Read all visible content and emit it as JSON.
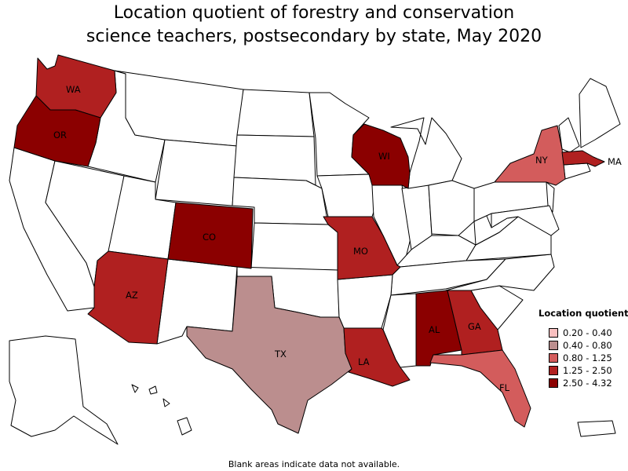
{
  "title_line1": "Location quotient of forestry and conservation",
  "title_line2": "science teachers, postsecondary by state, May 2020",
  "legend": {
    "title": "Location quotient",
    "items": [
      {
        "label": "0.20 - 0.40",
        "color": "#f9c0c0"
      },
      {
        "label": "0.40 - 0.80",
        "color": "#bb8e8e"
      },
      {
        "label": "0.80 - 1.25",
        "color": "#d35c5c"
      },
      {
        "label": "1.25 - 2.50",
        "color": "#b02020"
      },
      {
        "label": "2.50 - 4.32",
        "color": "#8b0000"
      }
    ]
  },
  "colors": {
    "no_data": "#ffffff",
    "border": "#000000"
  },
  "states": [
    {
      "abbr": "WA",
      "label": "WA",
      "bin": 3
    },
    {
      "abbr": "OR",
      "label": "OR",
      "bin": 4
    },
    {
      "abbr": "CO",
      "label": "CO",
      "bin": 4
    },
    {
      "abbr": "AZ",
      "label": "AZ",
      "bin": 3
    },
    {
      "abbr": "TX",
      "label": "TX",
      "bin": 1
    },
    {
      "abbr": "MO",
      "label": "MO",
      "bin": 3
    },
    {
      "abbr": "LA",
      "label": "LA",
      "bin": 3
    },
    {
      "abbr": "WI",
      "label": "WI",
      "bin": 4
    },
    {
      "abbr": "AL",
      "label": "AL",
      "bin": 4
    },
    {
      "abbr": "GA",
      "label": "GA",
      "bin": 3
    },
    {
      "abbr": "FL",
      "label": "FL",
      "bin": 2
    },
    {
      "abbr": "NY",
      "label": "NY",
      "bin": 2
    },
    {
      "abbr": "MA",
      "label": "MA",
      "bin": 3
    }
  ],
  "footnote": "Blank areas indicate data not available."
}
